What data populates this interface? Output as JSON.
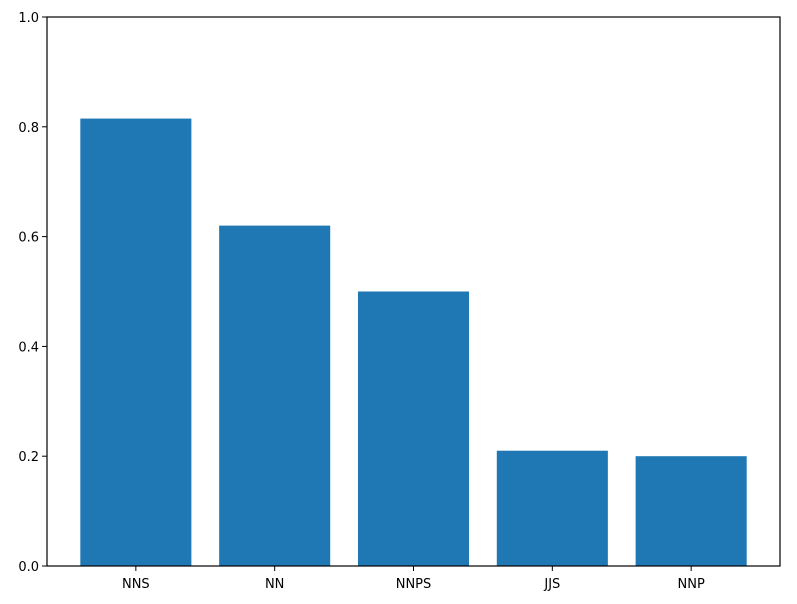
{
  "chart_data": {
    "type": "bar",
    "categories": [
      "NNS",
      "NN",
      "NNPS",
      "JJS",
      "NNP"
    ],
    "values": [
      0.815,
      0.62,
      0.5,
      0.21,
      0.2
    ],
    "color": "#1f77b4",
    "ylim": [
      0,
      1
    ],
    "yticks": [
      {
        "value": 0,
        "label": "0.0"
      },
      0.2,
      0.4,
      0.6,
      0.8,
      {
        "value": 1,
        "label": "1.0"
      }
    ],
    "grid": false
  }
}
